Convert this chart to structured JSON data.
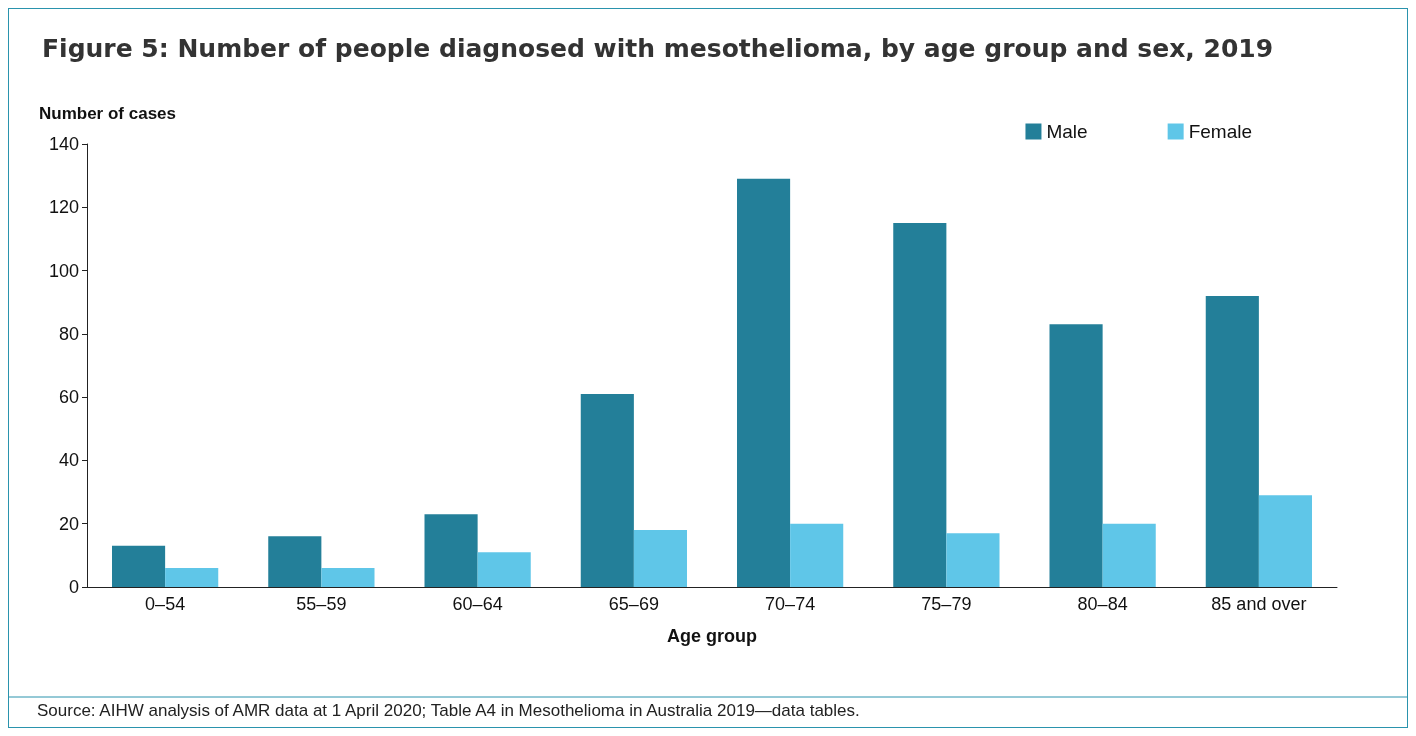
{
  "chart_data": {
    "type": "bar",
    "title": "Figure 5: Number of people diagnosed with mesothelioma, by age group and sex, 2019",
    "xlabel": "Age group",
    "ylabel": "Number of cases",
    "categories": [
      "0–54",
      "55–59",
      "60–64",
      "65–69",
      "70–74",
      "75–79",
      "80–84",
      "85 and over"
    ],
    "series": [
      {
        "name": "Male",
        "color": "#237f99",
        "values": [
          13,
          16,
          23,
          61,
          129,
          115,
          83,
          92
        ]
      },
      {
        "name": "Female",
        "color": "#5fc6e8",
        "values": [
          6,
          6,
          11,
          18,
          20,
          17,
          20,
          29
        ]
      }
    ],
    "ylim": [
      0,
      140
    ],
    "yticks": [
      0,
      20,
      40,
      60,
      80,
      100,
      120,
      140
    ],
    "grid": false,
    "legend": "top right",
    "annotations": [
      "Source: AIHW analysis of AMR data at 1 April 2020; Table A4 in Mesothelioma in Australia 2019—data tables."
    ]
  }
}
